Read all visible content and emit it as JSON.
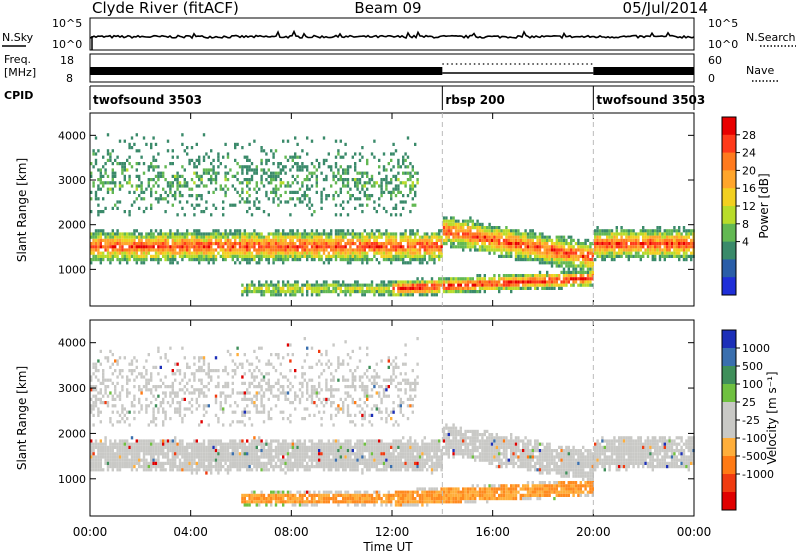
{
  "header": {
    "station": "Clyde River (fitACF)",
    "beam": "Beam 09",
    "date": "05/Jul/2014"
  },
  "panels": {
    "nsky": {
      "label": "N.Sky",
      "ticks": [
        "10^5",
        "10^0"
      ]
    },
    "nsearch": {
      "label": "N.Search",
      "ticks": [
        "10^5",
        "10^0"
      ]
    },
    "freq": {
      "label_line1": "Freq.",
      "label_line2": "[MHz]",
      "ticks": [
        "18",
        "8"
      ]
    },
    "nave": {
      "label": "Nave",
      "ticks": [
        "60",
        "0"
      ]
    },
    "cpid": {
      "label": "CPID"
    }
  },
  "cpid_segments": [
    {
      "name": "twofsound 3503",
      "start_hour": 0,
      "end_hour": 14
    },
    {
      "name": "rbsp 200",
      "start_hour": 14,
      "end_hour": 20
    },
    {
      "name": "twofsound 3503",
      "start_hour": 20,
      "end_hour": 24
    }
  ],
  "power_scale": {
    "label": "Power [dB]",
    "ticks": [
      "28",
      "24",
      "20",
      "16",
      "12",
      "8",
      "4"
    ],
    "colors": [
      "#e80000",
      "#ff3a1a",
      "#ff7a1e",
      "#ffa52b",
      "#f2d020",
      "#b8dc2a",
      "#62b852",
      "#3a8a6a",
      "#2a5ea8",
      "#1f2fd8"
    ]
  },
  "velocity_scale": {
    "label": "Velocity [m s⁻¹]",
    "ticks": [
      "1000",
      "500",
      "100",
      "25",
      "-25",
      "-100",
      "-500",
      "-1000"
    ],
    "colors": [
      "#1c2fb8",
      "#3a6fae",
      "#3f8f5a",
      "#6fc040",
      "#c9c9c6",
      "#c9c9c6",
      "#ffae3a",
      "#ff7a14",
      "#f03b10",
      "#e00000"
    ]
  },
  "chart_data": [
    {
      "type": "heatmap",
      "title": "Power",
      "xlabel": "Time UT",
      "ylabel": "Slant Range [km]",
      "x_ticks": [
        "00:00",
        "04:00",
        "08:00",
        "12:00",
        "16:00",
        "20:00",
        "00:00"
      ],
      "y_ticks": [
        "1000",
        "2000",
        "3000",
        "4000"
      ],
      "xlim_hours": [
        0,
        24
      ],
      "ylim_km": [
        180,
        4500
      ],
      "colorbar": "Power [dB]",
      "clim_db": [
        0,
        32
      ]
    },
    {
      "type": "heatmap",
      "title": "Velocity",
      "xlabel": "Time UT",
      "ylabel": "Slant Range [km]",
      "x_ticks": [
        "00:00",
        "04:00",
        "08:00",
        "12:00",
        "16:00",
        "20:00",
        "00:00"
      ],
      "y_ticks": [
        "1000",
        "2000",
        "3000",
        "4000"
      ],
      "xlim_hours": [
        0,
        24
      ],
      "ylim_km": [
        180,
        4500
      ],
      "colorbar": "Velocity [m s⁻¹]",
      "clim_ms": [
        -1000,
        1000
      ]
    }
  ]
}
